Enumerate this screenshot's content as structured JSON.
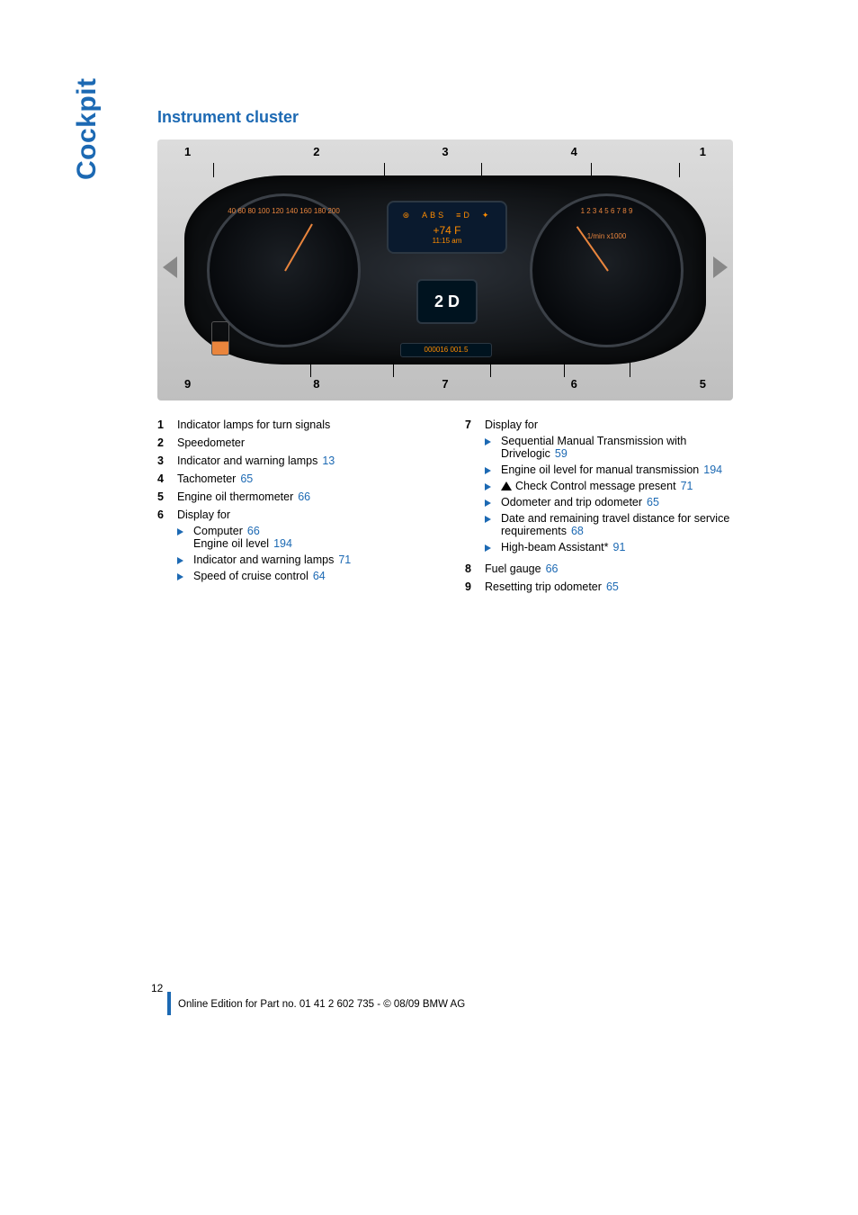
{
  "sidebar": "Cockpit",
  "section_title": "Instrument cluster",
  "cluster": {
    "callouts_top": [
      "1",
      "2",
      "3",
      "4",
      "1"
    ],
    "callouts_bottom": [
      "9",
      "8",
      "7",
      "6",
      "5"
    ],
    "speedo_ticks": "40 60 80 100 120 140 160 180 200",
    "tach_ticks": "1 2 3 4 5 6 7 8 9",
    "tach_label": "1/min x1000",
    "info_temp": "+74 F",
    "info_time": "11:15 am",
    "gear": "2 D",
    "odometer": "000016 001.5"
  },
  "left_items": [
    {
      "n": "1",
      "text": "Indicator lamps for turn signals"
    },
    {
      "n": "2",
      "text": "Speedometer"
    },
    {
      "n": "3",
      "text": "Indicator and warning lamps",
      "ref": "13"
    },
    {
      "n": "4",
      "text": "Tachometer",
      "ref": "65"
    },
    {
      "n": "5",
      "text": "Engine oil thermometer",
      "ref": "66"
    },
    {
      "n": "6",
      "text": "Display for",
      "sub": [
        {
          "text": "Computer",
          "ref": "66",
          "extra": "Engine oil level",
          "extra_ref": "194"
        },
        {
          "text": "Indicator and warning lamps",
          "ref": "71"
        },
        {
          "text": "Speed of cruise control",
          "ref": "64"
        }
      ]
    }
  ],
  "right_items": [
    {
      "n": "7",
      "text": "Display for",
      "sub": [
        {
          "text": "Sequential Manual Transmission with Drivelogic",
          "ref": "59"
        },
        {
          "text": "Engine oil level for manual transmission",
          "ref": "194"
        },
        {
          "warn": true,
          "text": "Check Control message present",
          "ref": "71"
        },
        {
          "text": "Odometer and trip odometer",
          "ref": "65"
        },
        {
          "text": "Date and remaining travel distance for service requirements",
          "ref": "68"
        },
        {
          "text": "High-beam Assistant*",
          "ref": "91"
        }
      ]
    },
    {
      "n": "8",
      "text": "Fuel gauge",
      "ref": "66"
    },
    {
      "n": "9",
      "text": "Resetting trip odometer",
      "ref": "65"
    }
  ],
  "page_number": "12",
  "footer": "Online Edition for Part no. 01 41 2 602 735 - © 08/09 BMW AG"
}
